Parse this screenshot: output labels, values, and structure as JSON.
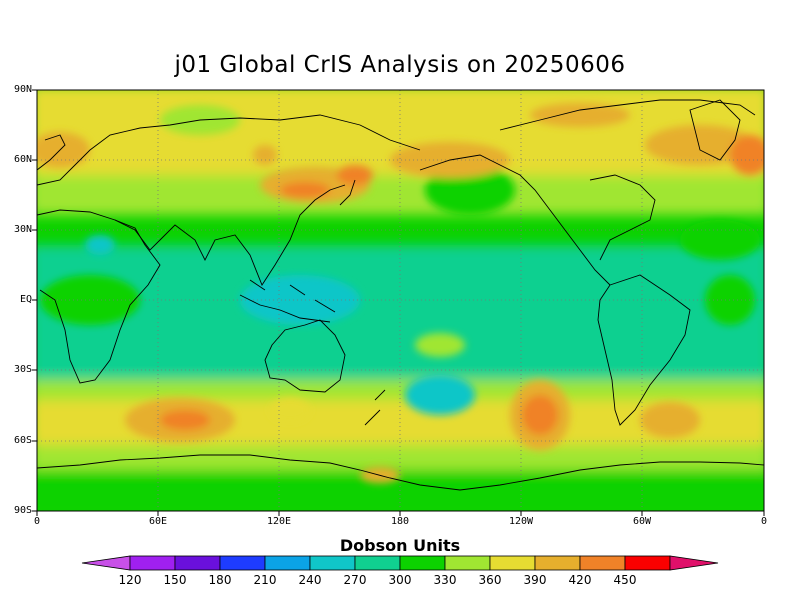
{
  "title": "j01 Global CrIS Analysis on 20250606",
  "map": {
    "projection": "equirectangular",
    "lon_range": [
      0,
      360
    ],
    "lat_range": [
      -90,
      90
    ],
    "grid": "dotted",
    "lat_labels": [
      "90N",
      "60N",
      "30N",
      "EQ",
      "30S",
      "60S",
      "90S"
    ],
    "lon_labels": [
      "0",
      "60E",
      "120E",
      "180",
      "120W",
      "60W",
      "0"
    ]
  },
  "colorbar": {
    "title": "Dobson Units",
    "ticks": [
      "120",
      "150",
      "180",
      "210",
      "240",
      "270",
      "300",
      "330",
      "360",
      "390",
      "420",
      "450"
    ],
    "colors": [
      "#a020f0",
      "#6a10dc",
      "#1e3cff",
      "#0ba3e6",
      "#10c6c8",
      "#10d090",
      "#0cd200",
      "#a0e632",
      "#e6dc32",
      "#e6af2d",
      "#f08228",
      "#fa0000"
    ],
    "end_low": "#c850e8",
    "end_high": "#e0106a"
  },
  "chart_data": {
    "type": "heatmap",
    "title": "j01 Global CrIS Analysis on 20250606",
    "units": "Dobson Units",
    "levels": [
      120,
      150,
      180,
      210,
      240,
      270,
      300,
      330,
      360,
      390,
      420,
      450
    ],
    "features": [
      {
        "region": "tropics / equatorial band",
        "value_range": [
          240,
          270
        ]
      },
      {
        "region": "southern midlatitude band (~40-60S)",
        "value_range": [
          300,
          360
        ]
      },
      {
        "region": "northern high latitudes",
        "value_range": [
          330,
          390
        ]
      },
      {
        "region": "maxima over Siberia, NE Canada, S Indian Ocean, S Pacific",
        "value_range": [
          390,
          420
        ]
      },
      {
        "region": "Antarctic",
        "value_range": [
          300,
          330
        ]
      }
    ]
  }
}
